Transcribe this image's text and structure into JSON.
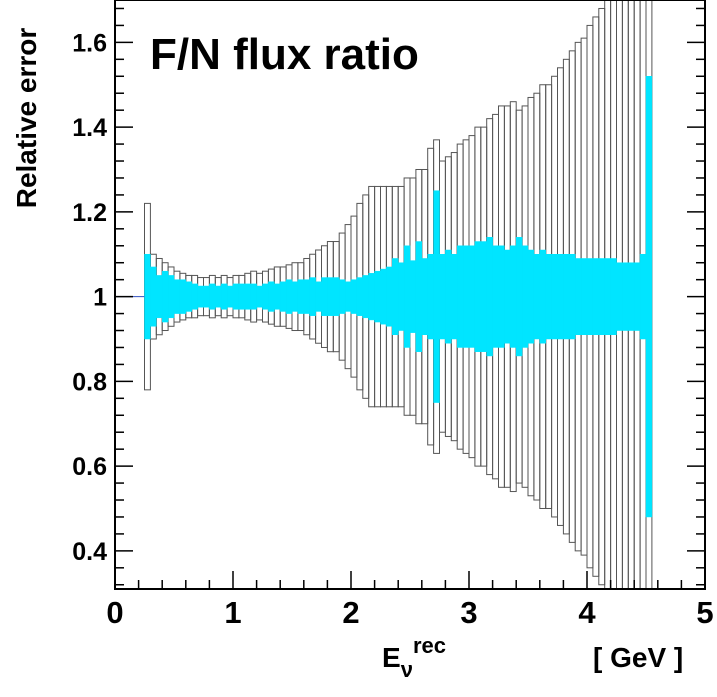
{
  "chart_data": {
    "type": "bar",
    "title": "F/N flux ratio",
    "ylabel": "Relative error",
    "xlabel_main": "E",
    "xlabel_sub": "ν",
    "xlabel_sup": "rec",
    "xunit": "[ GeV ]",
    "xlim": [
      0,
      5
    ],
    "ylim": [
      0.31,
      1.7
    ],
    "x_ticks": [
      "0",
      "1",
      "2",
      "3",
      "4",
      "5"
    ],
    "y_ticks": [
      "0.4",
      "0.6",
      "0.8",
      "1",
      "1.2",
      "1.4",
      "1.6"
    ],
    "bin_width": 0.05,
    "center_line": 1.0,
    "fill_color": "#00e5ff",
    "outline_color": "#555555",
    "series": [
      {
        "name": "",
        "description": "inner band (filled) and outer band (open) half-widths per bin, bins starting at 0.25 GeV",
        "x_start": 0.25,
        "inner_halfwidth": [
          0.1,
          0.07,
          0.05,
          0.06,
          0.05,
          0.04,
          0.04,
          0.035,
          0.03,
          0.025,
          0.025,
          0.03,
          0.025,
          0.03,
          0.025,
          0.03,
          0.03,
          0.03,
          0.03,
          0.025,
          0.03,
          0.035,
          0.03,
          0.035,
          0.04,
          0.035,
          0.04,
          0.04,
          0.045,
          0.035,
          0.045,
          0.045,
          0.045,
          0.04,
          0.035,
          0.04,
          0.045,
          0.05,
          0.055,
          0.06,
          0.065,
          0.07,
          0.09,
          0.08,
          0.12,
          0.085,
          0.13,
          0.09,
          0.1,
          0.25,
          0.1,
          0.11,
          0.1,
          0.12,
          0.12,
          0.12,
          0.13,
          0.13,
          0.14,
          0.12,
          0.12,
          0.11,
          0.12,
          0.14,
          0.12,
          0.11,
          0.1,
          0.11,
          0.1,
          0.1,
          0.1,
          0.1,
          0.1,
          0.09,
          0.09,
          0.09,
          0.09,
          0.09,
          0.09,
          0.09,
          0.08,
          0.08,
          0.08,
          0.08,
          0.1,
          0.52
        ],
        "outer_halfwidth": [
          0.22,
          0.1,
          0.09,
          0.08,
          0.07,
          0.06,
          0.055,
          0.05,
          0.05,
          0.045,
          0.045,
          0.05,
          0.045,
          0.05,
          0.045,
          0.05,
          0.05,
          0.055,
          0.06,
          0.055,
          0.06,
          0.065,
          0.07,
          0.07,
          0.075,
          0.08,
          0.08,
          0.09,
          0.1,
          0.11,
          0.12,
          0.13,
          0.13,
          0.15,
          0.17,
          0.19,
          0.22,
          0.24,
          0.26,
          0.26,
          0.26,
          0.26,
          0.26,
          0.26,
          0.28,
          0.28,
          0.3,
          0.3,
          0.35,
          0.37,
          0.32,
          0.33,
          0.34,
          0.36,
          0.37,
          0.38,
          0.4,
          0.4,
          0.42,
          0.43,
          0.45,
          0.45,
          0.46,
          0.44,
          0.45,
          0.47,
          0.48,
          0.5,
          0.5,
          0.52,
          0.54,
          0.56,
          0.58,
          0.6,
          0.61,
          0.64,
          0.66,
          0.68,
          0.7,
          0.72,
          0.75,
          0.78,
          0.8,
          0.82,
          0.84,
          0.86
        ]
      }
    ]
  }
}
